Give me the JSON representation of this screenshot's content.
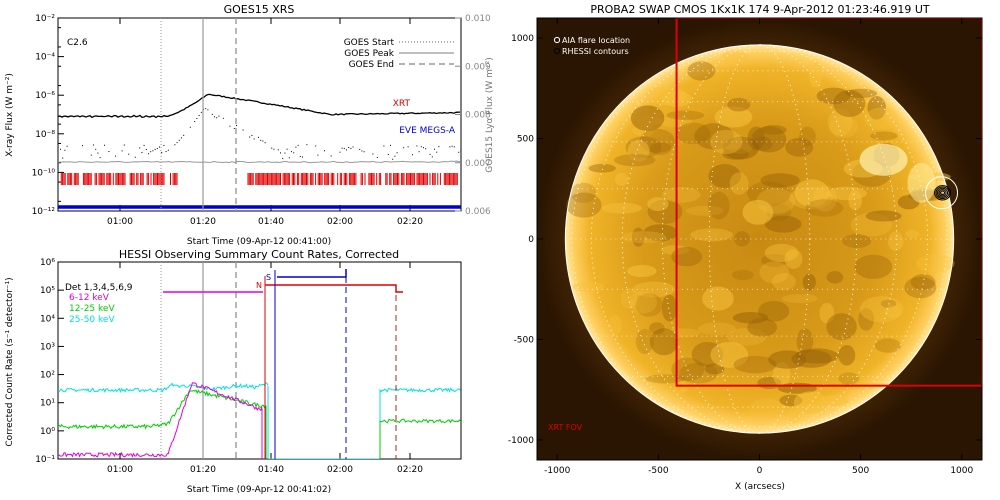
{
  "chart_data": [
    {
      "type": "line",
      "title": "GOES15 XRS",
      "xlabel": "Start Time (09-Apr-12 00:41:00)",
      "ylabel": "X-ray Flux (W m⁻²)",
      "y2label": "GOES15 Lyα Flux (W m⁻²)",
      "x_ticks": [
        "01:00",
        "01:20",
        "01:40",
        "02:00",
        "02:20"
      ],
      "y_ticks": [
        "10⁻²",
        "10⁻⁴",
        "10⁻⁶",
        "10⁻⁸",
        "10⁻¹⁰",
        "10⁻¹²"
      ],
      "y2_ticks": [
        "0.010",
        "0.009",
        "0.008",
        "0.007",
        "0.006"
      ],
      "ylim": [
        "1e-12",
        "1e-2"
      ],
      "y_scale": "log",
      "flare_class": "C2.6",
      "legend": [
        {
          "label": "GOES Start",
          "style": "dotted"
        },
        {
          "label": "GOES Peak",
          "style": "solid"
        },
        {
          "label": "GOES End",
          "style": "dashed"
        }
      ],
      "annotations": [
        {
          "text": "XRT",
          "color": "#e00000"
        },
        {
          "text": "EVE MEGS-A",
          "color": "#0000d0"
        }
      ],
      "series_colors": {
        "long": "#000000",
        "short": "#000000",
        "lya": "#999999",
        "xrt": "#e00000",
        "eve": "#0000d0"
      }
    },
    {
      "type": "line",
      "title": "HESSI Observing Summary Count Rates, Corrected",
      "xlabel": "Start Time (09-Apr-12 00:41:02)",
      "ylabel": "Corrected Count Rate (s⁻¹ detector⁻¹)",
      "x_ticks": [
        "01:00",
        "01:20",
        "01:40",
        "02:00",
        "02:20"
      ],
      "y_ticks": [
        "10⁶",
        "10⁵",
        "10⁴",
        "10³",
        "10²",
        "10¹",
        "10⁰",
        "10⁻¹"
      ],
      "ylim": [
        "1e-1",
        "1e6"
      ],
      "y_scale": "log",
      "detectors": "Det 1,3,4,5,6,9",
      "series": [
        {
          "name": "6-12 keV",
          "color": "#e000e0"
        },
        {
          "name": "12-25 keV",
          "color": "#00cc00"
        },
        {
          "name": "25-50 keV",
          "color": "#00e0e0"
        }
      ],
      "flags": [
        {
          "text": "N",
          "color": "#e00000"
        },
        {
          "text": "S",
          "color": "#0000d0"
        }
      ]
    },
    {
      "type": "image",
      "title": "PROBA2 SWAP CMOS 1Kx1K 174   9-Apr-2012 01:23:46.919 UT",
      "xlabel": "X (arcsecs)",
      "x_ticks": [
        "-1000",
        "-500",
        "0",
        "500",
        "1000"
      ],
      "y_ticks": [
        "1000",
        "500",
        "0",
        "-500",
        "-1000"
      ],
      "xlim": [
        -1100,
        1100
      ],
      "ylim": [
        -1100,
        1100
      ],
      "legend": [
        {
          "label": "AIA flare location"
        },
        {
          "label": "RHESSI contours"
        }
      ],
      "fov_label": "XRT FOV",
      "fov_box": {
        "x0": -410,
        "x1": 1100,
        "y0": -730,
        "y1": 1100
      },
      "solar_radius": 960,
      "flare_location": [
        900,
        230
      ]
    }
  ]
}
